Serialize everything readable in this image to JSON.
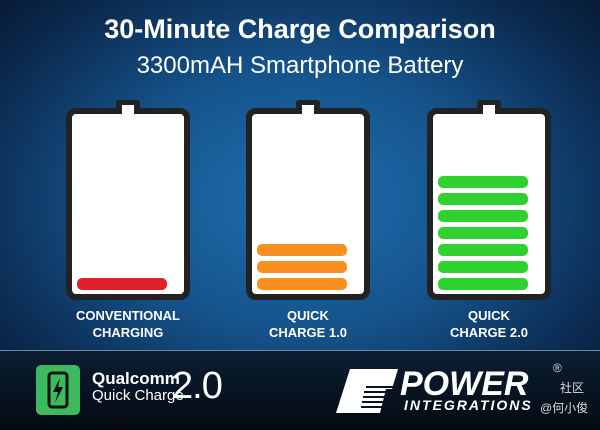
{
  "header": {
    "title": "30-Minute Charge Comparison",
    "subtitle": "3300mAH Smartphone Battery"
  },
  "batteries": [
    {
      "label_line1": "CONVENTIONAL",
      "label_line2": "CHARGING",
      "bars": 1,
      "color": "#e2202a"
    },
    {
      "label_line1": "QUICK",
      "label_line2": "CHARGE 1.0",
      "bars": 3,
      "color": "#f7901e"
    },
    {
      "label_line1": "QUICK",
      "label_line2": "CHARGE 2.0",
      "bars": 7,
      "color": "#2ed12e"
    }
  ],
  "footer": {
    "qualcomm_line1": "Qualcomm",
    "qualcomm_line2": "Quick Charge",
    "qualcomm_version": "2.0",
    "power_line1": "POWER",
    "power_line2": "INTEGRATIONS",
    "registered": "®",
    "watermark1": "社区",
    "watermark2": "@何小俊",
    "icon": "phone-lightning-icon"
  }
}
